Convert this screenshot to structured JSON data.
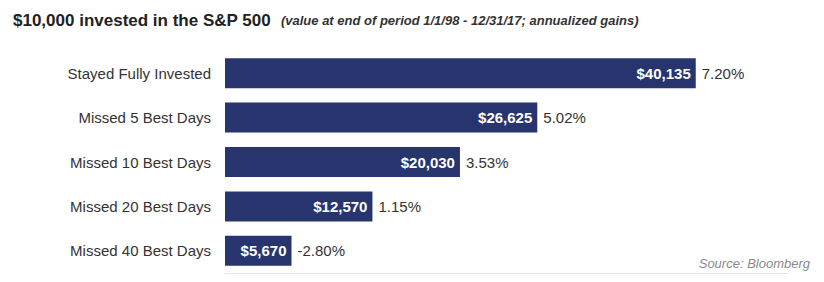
{
  "chart_data": {
    "type": "bar",
    "orientation": "horizontal",
    "title": "$10,000 invested in the S&P 500",
    "subtitle": "(value at end of period 1/1/98 - 12/31/17; annualized gains)",
    "categories": [
      "Stayed Fully Invested",
      "Missed 5 Best Days",
      "Missed 10 Best Days",
      "Missed 20 Best Days",
      "Missed 40 Best Days"
    ],
    "values": [
      40135,
      26625,
      20030,
      12570,
      5670
    ],
    "value_labels": [
      "$40,135",
      "$26,625",
      "$20,030",
      "$12,570",
      "$5,670"
    ],
    "annotations": [
      "7.20%",
      "5.02%",
      "3.53%",
      "1.15%",
      "-2.80%"
    ],
    "color": "#27346d",
    "xlim": [
      0,
      48000
    ],
    "tick_labels": "y",
    "data_labels": true,
    "grid": false,
    "source": "Source: Bloomberg"
  }
}
